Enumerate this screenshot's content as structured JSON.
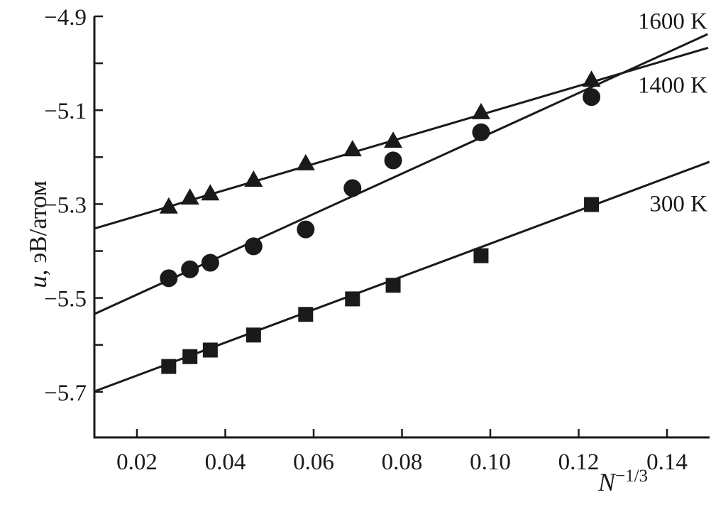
{
  "figure": {
    "background_color": "#ffffff",
    "ink_color": "#1a1a1a"
  },
  "chart_data": {
    "type": "scatter",
    "title": "",
    "xlabel": "N−1/3",
    "xlabel_base": "N",
    "xlabel_exponent": "−1/3",
    "ylabel": "u, эВ/атом",
    "ylabel_italic": "u",
    "ylabel_rest": ", эВ/атом",
    "xlim": [
      0.0104,
      0.1496
    ],
    "ylim": [
      -5.797,
      -4.887
    ],
    "grid": false,
    "legend_position": "right-margin",
    "x_ticks": [
      0.02,
      0.04,
      0.06,
      0.08,
      0.1,
      0.12,
      0.14
    ],
    "x_tick_labels": [
      "0.02",
      "0.04",
      "0.06",
      "0.08",
      "0.10",
      "0.12",
      "0.14"
    ],
    "y_major_ticks": [
      -4.9,
      -5.1,
      -5.3,
      -5.5,
      -5.7
    ],
    "y_tick_labels": [
      "−4.9",
      "−5.1",
      "−5.3",
      "−5.5",
      "−5.7"
    ],
    "y_minor_ticks": [
      -5.0,
      -5.2,
      -5.4,
      -5.6
    ],
    "x": [
      0.0272,
      0.032,
      0.0366,
      0.0464,
      0.0582,
      0.0688,
      0.078,
      0.0979,
      0.1229
    ],
    "series": [
      {
        "name": "1600 K",
        "marker": "triangle",
        "values": [
          -5.305,
          -5.286,
          -5.277,
          -5.248,
          -5.213,
          -5.183,
          -5.165,
          -5.104,
          -5.035
        ],
        "fit_line": {
          "x1": 0.0104,
          "u1": -5.352,
          "x2": 0.1493,
          "u2": -4.967
        }
      },
      {
        "name": "1400 K",
        "marker": "circle",
        "values": [
          -5.458,
          -5.439,
          -5.425,
          -5.39,
          -5.354,
          -5.266,
          -5.207,
          -5.147,
          -5.072
        ],
        "fit_line": {
          "x1": 0.0104,
          "u1": -5.534,
          "x2": 0.1492,
          "u2": -4.938
        }
      },
      {
        "name": "300 K",
        "marker": "square",
        "values": [
          -5.646,
          -5.625,
          -5.611,
          -5.579,
          -5.535,
          -5.502,
          -5.473,
          -5.41,
          -5.301
        ],
        "fit_line": {
          "x1": 0.0104,
          "u1": -5.699,
          "x2": 0.1496,
          "u2": -5.21
        }
      }
    ]
  }
}
